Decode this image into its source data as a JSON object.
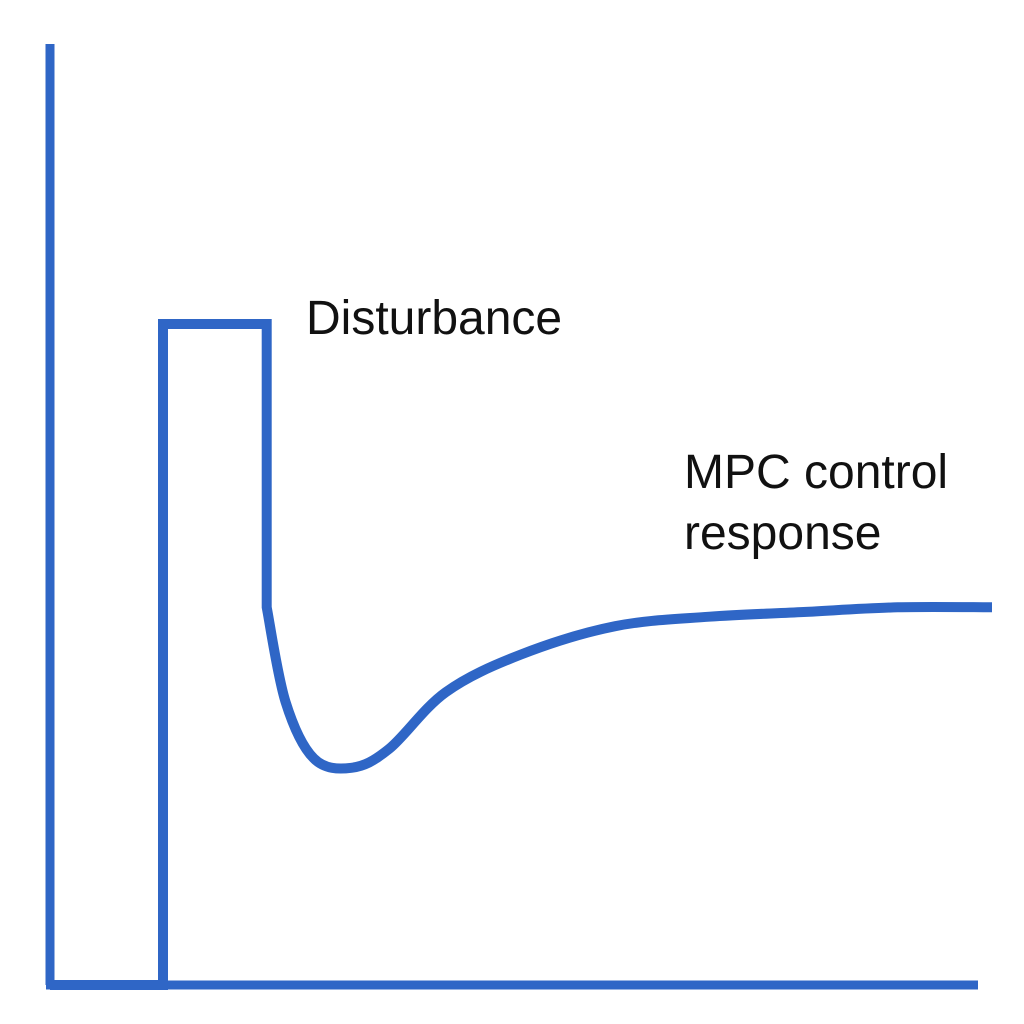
{
  "chart_data": {
    "type": "line",
    "title": "",
    "xlabel": "",
    "ylabel": "",
    "grid": false,
    "legend": "none",
    "line_color": "#2f66c6",
    "annotations": {
      "disturbance": "Disturbance",
      "response_line1": "MPC control",
      "response_line2": "response"
    },
    "series": [
      {
        "x": [
          0.0,
          0.12,
          0.12,
          0.23,
          0.23,
          0.25,
          0.28,
          0.32,
          0.36,
          0.42,
          0.5,
          0.6,
          0.7,
          0.8,
          0.9,
          1.0
        ],
        "y": [
          0.0,
          0.0,
          0.7,
          0.7,
          0.4,
          0.3,
          0.24,
          0.23,
          0.25,
          0.31,
          0.35,
          0.38,
          0.39,
          0.395,
          0.4,
          0.4
        ]
      }
    ]
  }
}
